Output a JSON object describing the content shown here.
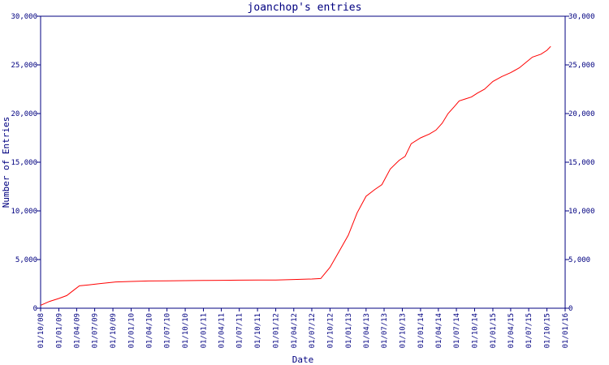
{
  "chart_data": {
    "type": "line",
    "title": "joanchop's entries",
    "xlabel": "Date",
    "ylabel": "Number of Entries",
    "grid": false,
    "legend": "none",
    "x_tick_labels": [
      "01/10/08",
      "01/01/09",
      "01/04/09",
      "01/07/09",
      "01/10/09",
      "01/01/10",
      "01/04/10",
      "01/07/10",
      "01/10/10",
      "01/01/11",
      "01/04/11",
      "01/07/11",
      "01/10/11",
      "01/01/12",
      "01/04/12",
      "01/07/12",
      "01/10/12",
      "01/01/13",
      "01/04/13",
      "01/07/13",
      "01/10/13",
      "01/01/14",
      "01/04/14",
      "01/07/14",
      "01/10/14",
      "01/01/15",
      "01/04/15",
      "01/07/15",
      "01/10/15",
      "01/01/16"
    ],
    "xlim": [
      "2008-10-01",
      "2016-01-01"
    ],
    "y_ticks": [
      0,
      5000,
      10000,
      15000,
      20000,
      25000,
      30000
    ],
    "y_tick_labels": [
      "0",
      "5,000",
      "10,000",
      "15,000",
      "20,000",
      "25,000",
      "30,000"
    ],
    "ylim": [
      0,
      30000
    ],
    "series": [
      {
        "color": "#ff0000",
        "points": [
          [
            "2008-10-01",
            300
          ],
          [
            "2008-11-15",
            700
          ],
          [
            "2009-01-01",
            1000
          ],
          [
            "2009-02-10",
            1300
          ],
          [
            "2009-03-20",
            1900
          ],
          [
            "2009-04-15",
            2300
          ],
          [
            "2009-06-01",
            2400
          ],
          [
            "2009-07-15",
            2500
          ],
          [
            "2009-09-01",
            2600
          ],
          [
            "2009-10-15",
            2700
          ],
          [
            "2010-01-01",
            2750
          ],
          [
            "2010-04-01",
            2800
          ],
          [
            "2010-07-01",
            2820
          ],
          [
            "2010-10-01",
            2830
          ],
          [
            "2011-01-01",
            2850
          ],
          [
            "2011-04-01",
            2870
          ],
          [
            "2011-07-01",
            2880
          ],
          [
            "2011-10-01",
            2890
          ],
          [
            "2012-01-01",
            2900
          ],
          [
            "2012-04-01",
            2950
          ],
          [
            "2012-07-01",
            3000
          ],
          [
            "2012-08-15",
            3050
          ],
          [
            "2012-10-01",
            4200
          ],
          [
            "2012-11-15",
            5800
          ],
          [
            "2013-01-01",
            7500
          ],
          [
            "2013-02-15",
            9800
          ],
          [
            "2013-04-01",
            11500
          ],
          [
            "2013-05-15",
            12200
          ],
          [
            "2013-06-20",
            12700
          ],
          [
            "2013-08-01",
            14300
          ],
          [
            "2013-09-15",
            15200
          ],
          [
            "2013-10-15",
            15600
          ],
          [
            "2013-11-15",
            16900
          ],
          [
            "2014-01-01",
            17500
          ],
          [
            "2014-02-15",
            17900
          ],
          [
            "2014-03-20",
            18300
          ],
          [
            "2014-04-20",
            19000
          ],
          [
            "2014-05-20",
            20000
          ],
          [
            "2014-06-20",
            20700
          ],
          [
            "2014-07-15",
            21300
          ],
          [
            "2014-08-15",
            21500
          ],
          [
            "2014-09-15",
            21700
          ],
          [
            "2014-10-15",
            22100
          ],
          [
            "2014-11-20",
            22500
          ],
          [
            "2015-01-01",
            23300
          ],
          [
            "2015-02-15",
            23800
          ],
          [
            "2015-04-01",
            24200
          ],
          [
            "2015-05-15",
            24700
          ],
          [
            "2015-06-20",
            25300
          ],
          [
            "2015-07-20",
            25800
          ],
          [
            "2015-09-01",
            26100
          ],
          [
            "2015-10-01",
            26500
          ],
          [
            "2015-10-20",
            26900
          ]
        ]
      }
    ]
  }
}
